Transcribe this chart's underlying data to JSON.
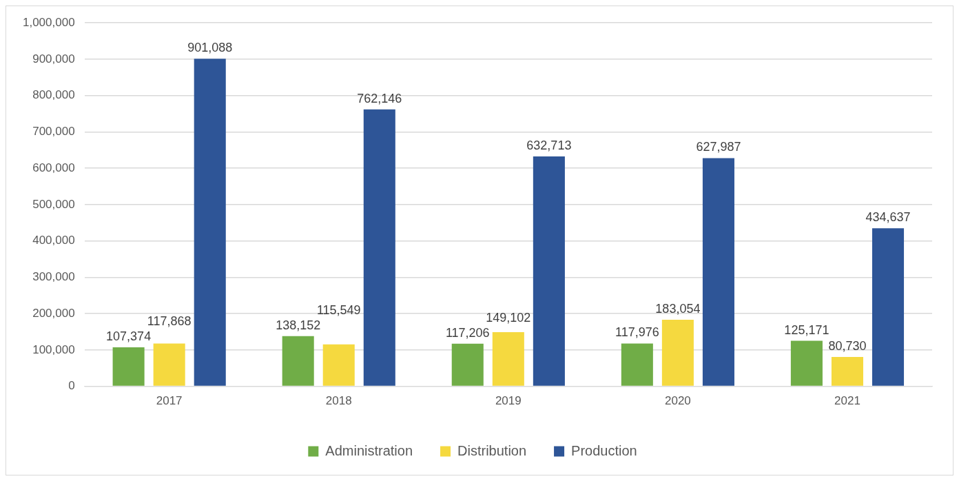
{
  "chart_data": {
    "type": "bar",
    "categories": [
      "2017",
      "2018",
      "2019",
      "2020",
      "2021"
    ],
    "series": [
      {
        "name": "Administration",
        "color": "#70ad47",
        "values": [
          107374,
          138152,
          117206,
          117976,
          125171
        ],
        "value_labels": [
          "107,374",
          "138,152",
          "117,206",
          "117,976",
          "125,171"
        ]
      },
      {
        "name": "Distribution",
        "color": "#f5d93f",
        "values": [
          117868,
          115549,
          149102,
          183054,
          80730
        ],
        "value_labels": [
          "117,868",
          "115,549",
          "149,102",
          "183,054",
          "80,730"
        ]
      },
      {
        "name": "Production",
        "color": "#2e5597",
        "values": [
          901088,
          762146,
          632713,
          627987,
          434637
        ],
        "value_labels": [
          "901,088",
          "762,146",
          "632,713",
          "627,987",
          "434,637"
        ]
      }
    ],
    "ylim": [
      0,
      1000000
    ],
    "yticks": [
      0,
      {
        "value": 100000,
        "label": "100,000"
      },
      {
        "value": 200000,
        "label": "200,000"
      },
      {
        "value": 300000,
        "label": "300,000"
      },
      {
        "value": 400000,
        "label": "400,000"
      },
      {
        "value": 500000,
        "label": "500,000"
      },
      {
        "value": 600000,
        "label": "600,000"
      },
      {
        "value": 700000,
        "label": "700,000"
      },
      {
        "value": 800000,
        "label": "800,000"
      },
      {
        "value": 900000,
        "label": "900,000"
      },
      {
        "value": 1000000,
        "label": "1,000,000"
      }
    ],
    "grid": "y",
    "legend": "bottom"
  }
}
